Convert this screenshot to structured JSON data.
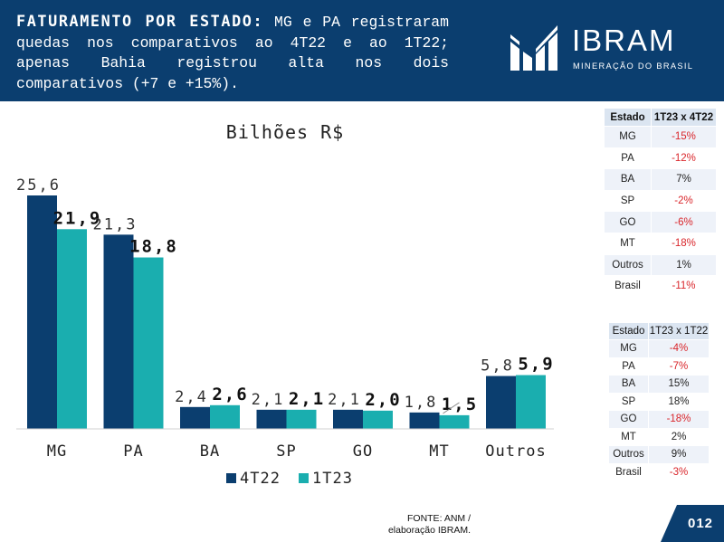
{
  "header": {
    "title": "FATURAMENTO POR ESTADO:",
    "text": " MG e PA registraram quedas nos comparativos ao 4T22 e ao 1T22; apenas Bahia registrou alta nos dois comparativos (+7 e +15%)."
  },
  "logo": {
    "word": "IBRAM",
    "subtitle": "MINERAÇÃO DO BRASIL"
  },
  "chart_data": {
    "type": "bar",
    "title": "Bilhões R$",
    "categories": [
      "MG",
      "PA",
      "BA",
      "SP",
      "GO",
      "MT",
      "Outros"
    ],
    "series": [
      {
        "name": "4T22",
        "values": [
          25.6,
          21.3,
          2.4,
          2.1,
          2.1,
          1.8,
          5.8
        ],
        "labels": [
          "25,6",
          "21,3",
          "2,4",
          "2,1",
          "2,1",
          "1,8",
          "5,8"
        ],
        "color": "#0b3e6f"
      },
      {
        "name": "1T23",
        "values": [
          21.9,
          18.8,
          2.6,
          2.1,
          2.0,
          1.5,
          5.9
        ],
        "labels": [
          "21,9",
          "18,8",
          "2,6",
          "2,1",
          "2,0",
          "1,5",
          "5,9"
        ],
        "color": "#1aaeaf"
      }
    ],
    "ylim": [
      0,
      25.6
    ],
    "grid": false,
    "legend": "bottom"
  },
  "table_qoq": {
    "headers": [
      "Estado",
      "1T23 x 4T22"
    ],
    "rows": [
      [
        "MG",
        "-15%"
      ],
      [
        "PA",
        "-12%"
      ],
      [
        "BA",
        "7%"
      ],
      [
        "SP",
        "-2%"
      ],
      [
        "GO",
        "-6%"
      ],
      [
        "MT",
        "-18%"
      ],
      [
        "Outros",
        "1%"
      ],
      [
        "Brasil",
        "-11%"
      ]
    ]
  },
  "table_yoy": {
    "headers": [
      "Estado",
      "1T23 x 1T22"
    ],
    "rows": [
      [
        "MG",
        "-4%"
      ],
      [
        "PA",
        "-7%"
      ],
      [
        "BA",
        "15%"
      ],
      [
        "SP",
        "18%"
      ],
      [
        "GO",
        "-18%"
      ],
      [
        "MT",
        "2%"
      ],
      [
        "Outros",
        "9%"
      ],
      [
        "Brasil",
        "-3%"
      ]
    ]
  },
  "footer": {
    "source_line1": "FONTE: ANM /",
    "source_line2": "elaboração IBRAM.",
    "page_number": "012"
  },
  "colors": {
    "brand_navy": "#0b3e6f",
    "teal": "#1aaeaf",
    "negative_red": "#d9262b"
  }
}
